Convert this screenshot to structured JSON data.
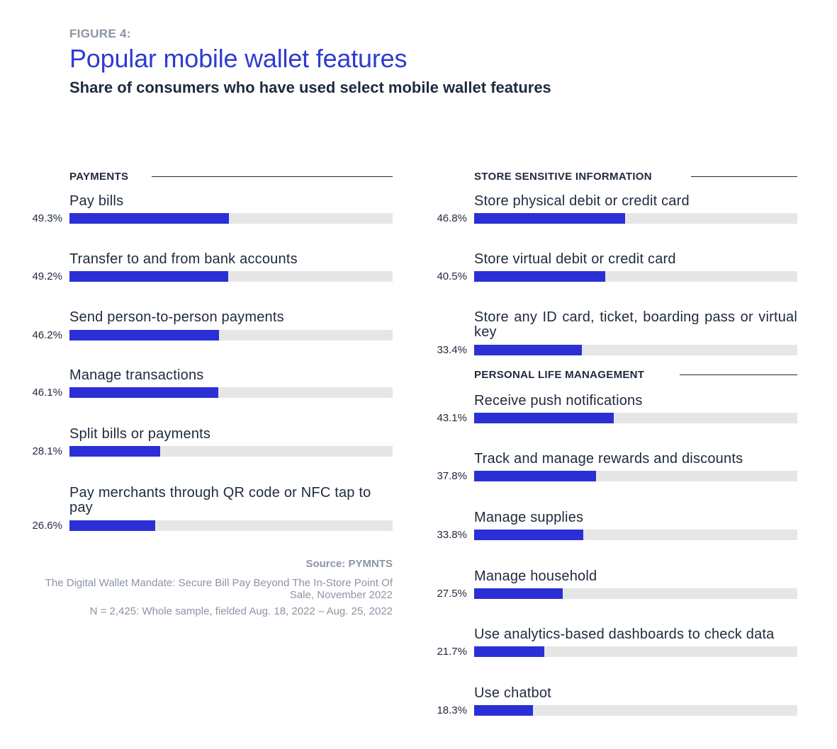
{
  "figure_label": "FIGURE 4:",
  "title": "Popular mobile wallet features",
  "subtitle": "Share of consumers who have used select mobile wallet features",
  "source": {
    "title": "Source: PYMNTS",
    "publication": "The Digital Wallet Mandate: Secure Bill Pay Beyond The In-Store Point Of Sale, November 2022",
    "sample": "N = 2,425: Whole sample, fielded Aug. 18, 2022 – Aug. 25, 2022"
  },
  "colors": {
    "bar": "#2b2fd6",
    "track": "#e6e6e6",
    "title": "#2f3bd1",
    "muted": "#8b95a3",
    "text": "#1e2a3c"
  },
  "chart_data": {
    "type": "bar",
    "orientation": "horizontal",
    "xlim": [
      0,
      100
    ],
    "unit": "%",
    "groups": [
      {
        "name": "PAYMENTS",
        "categories": [
          "Pay bills",
          "Transfer to and from bank accounts",
          "Send person-to-person payments",
          "Manage transactions",
          "Split bills or payments",
          "Pay merchants through QR code or NFC tap to pay"
        ],
        "values": [
          49.3,
          49.2,
          46.2,
          46.1,
          28.1,
          26.6
        ],
        "labels": [
          "49.3%",
          "49.2%",
          "46.2%",
          "46.1%",
          "28.1%",
          "26.6%"
        ]
      },
      {
        "name": "STORE SENSITIVE INFORMATION",
        "categories": [
          "Store physical debit or credit card",
          "Store virtual debit or credit card",
          "Store any ID card, ticket, boarding pass or virtual key"
        ],
        "values": [
          46.8,
          40.5,
          33.4
        ],
        "labels": [
          "46.8%",
          "40.5%",
          "33.4%"
        ]
      },
      {
        "name": "PERSONAL LIFE MANAGEMENT",
        "categories": [
          "Receive push notifications",
          "Track and manage rewards and discounts",
          "Manage supplies",
          "Manage household",
          "Use analytics-based dashboards to check data",
          "Use chatbot"
        ],
        "values": [
          43.1,
          37.8,
          33.8,
          27.5,
          21.7,
          18.3
        ],
        "labels": [
          "43.1%",
          "37.8%",
          "33.8%",
          "27.5%",
          "21.7%",
          "18.3%"
        ]
      }
    ]
  }
}
